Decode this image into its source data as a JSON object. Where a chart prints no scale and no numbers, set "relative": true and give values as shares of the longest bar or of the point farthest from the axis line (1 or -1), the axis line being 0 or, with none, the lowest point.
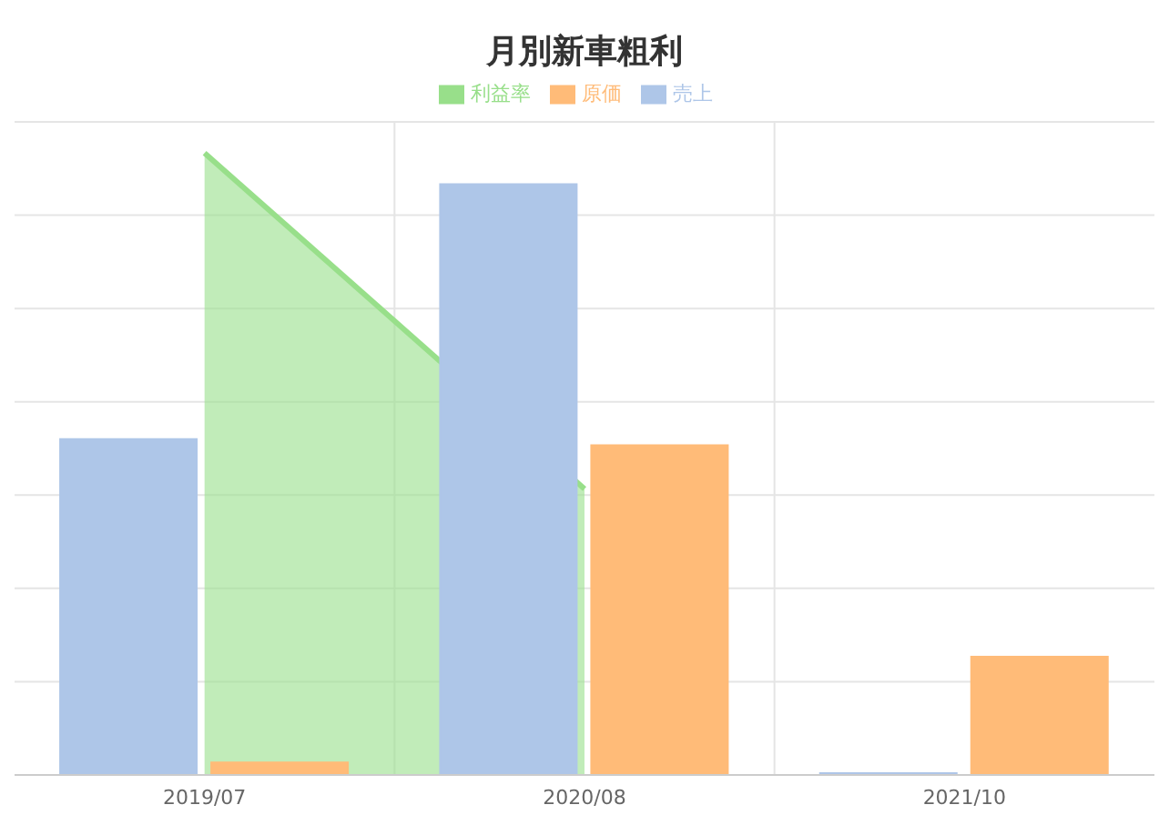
{
  "chart_data": {
    "type": "bar",
    "title": "月別新車粗利",
    "relative": true,
    "grid": true,
    "legend": "top",
    "categories": [
      "2019/07",
      "2020/08",
      "2021/10"
    ],
    "series": [
      {
        "name": "売上",
        "color": "#aec6e8",
        "values": [
          0.54,
          0.95,
          0.003
        ]
      },
      {
        "name": "原価",
        "color": "#ffbb78",
        "values": [
          0.02,
          0.53,
          0.19
        ]
      },
      {
        "name": "利益率",
        "type": "area",
        "color": "#98df8a",
        "values": [
          1,
          0.46,
          null
        ]
      }
    ]
  }
}
